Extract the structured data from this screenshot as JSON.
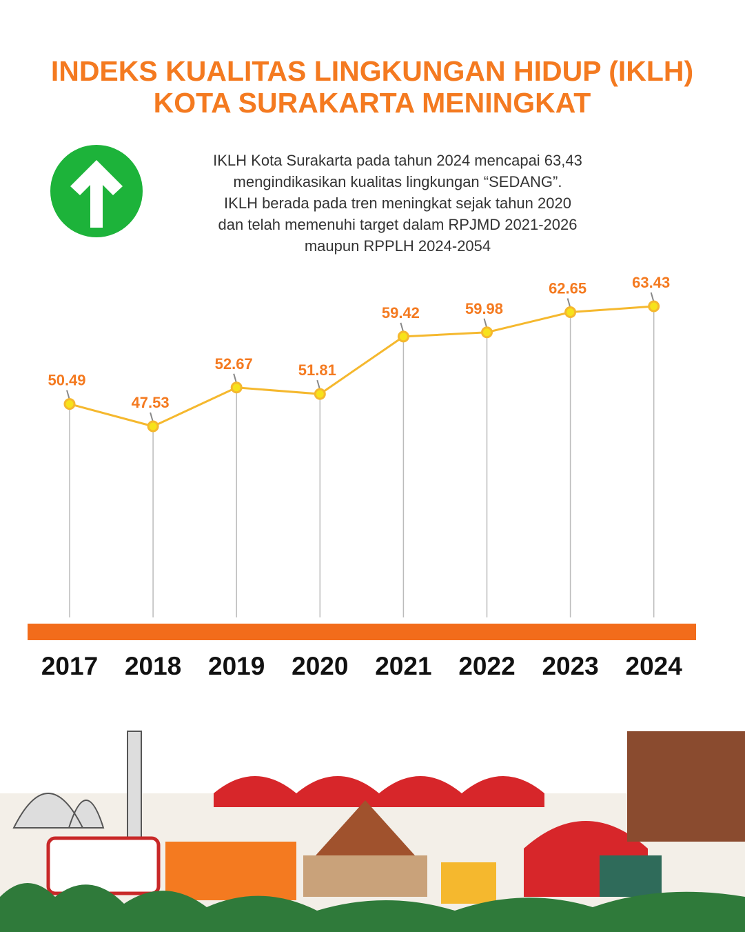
{
  "chart_data": {
    "type": "line",
    "title": [
      "INDEKS KUALITAS LINGKUNGAN HIDUP (IKLH)",
      "KOTA SURAKARTA MENINGKAT"
    ],
    "subtitle": [
      "IKLH Kota Surakarta pada tahun 2024 mencapai 63,43",
      "mengindikasikan kualitas lingkungan “SEDANG”.",
      "IKLH berada pada tren meningkat sejak tahun 2020",
      "dan telah memenuhi target dalam RPJMD 2021-2026",
      "maupun RPPLH 2024-2054"
    ],
    "categories": [
      "2017",
      "2018",
      "2019",
      "2020",
      "2021",
      "2022",
      "2023",
      "2024"
    ],
    "values": [
      50.49,
      47.53,
      52.67,
      51.81,
      59.42,
      59.98,
      62.65,
      63.43
    ],
    "color": "#f5b82e"
  }
}
